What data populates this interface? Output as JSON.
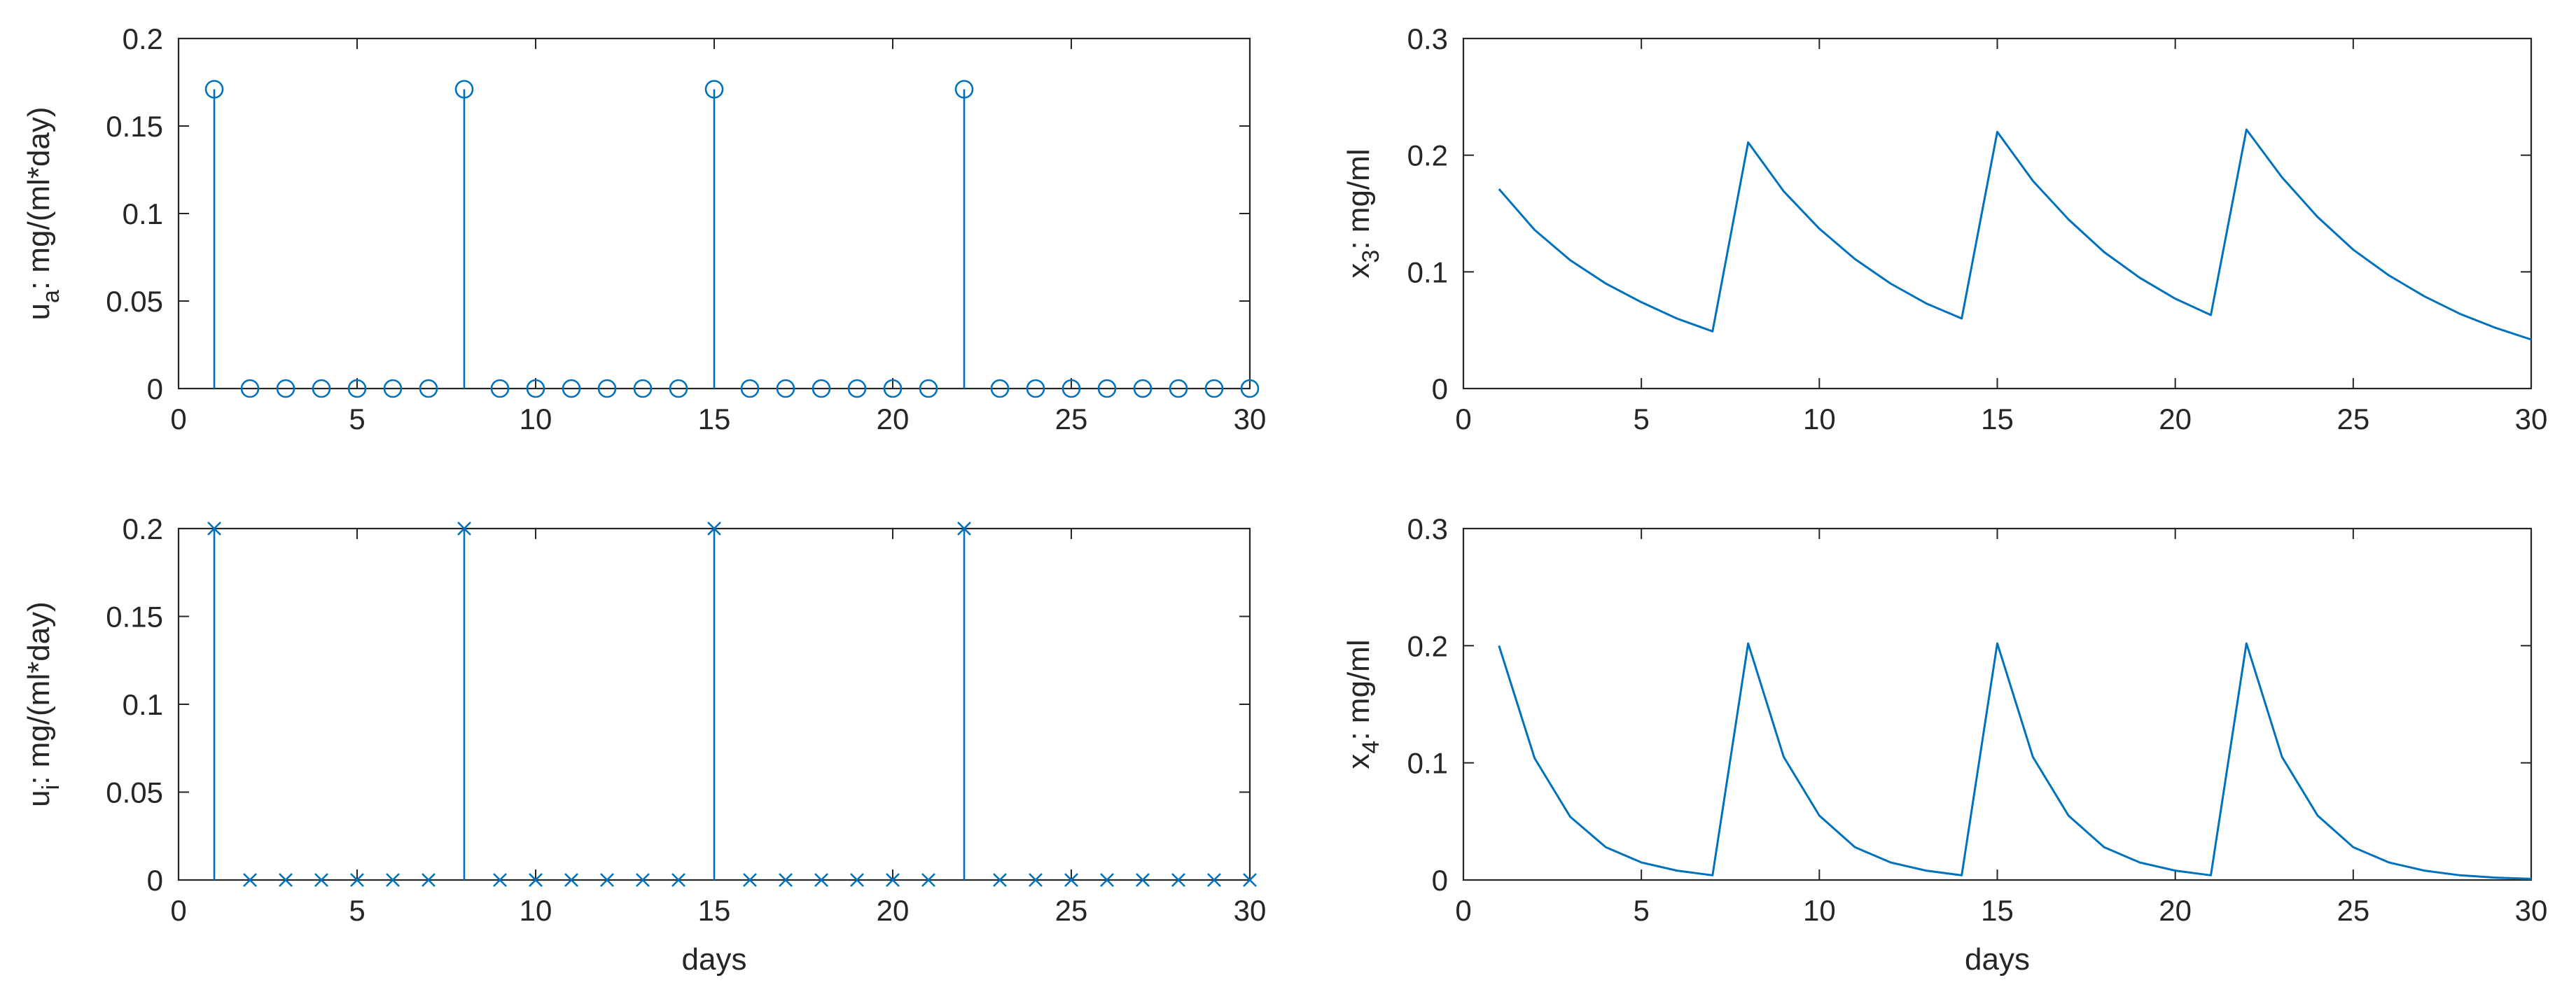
{
  "chart_data": [
    {
      "id": "ua",
      "type": "stem",
      "marker": "circle",
      "xlabel": "",
      "ylabel": {
        "base": "u",
        "sub": "a",
        "rest": ": mg/(ml*day)"
      },
      "xlim": [
        0,
        30
      ],
      "ylim": [
        0,
        0.2
      ],
      "xticks": [
        "0",
        "5",
        "10",
        "15",
        "20",
        "25",
        "30"
      ],
      "xtick_values": [
        0,
        5,
        10,
        15,
        20,
        25,
        30
      ],
      "yticks": [
        "0",
        "0.05",
        "0.1",
        "0.15",
        "0.2"
      ],
      "ytick_values": [
        0,
        0.05,
        0.1,
        0.15,
        0.2
      ],
      "series": [
        {
          "color": "#0072BD",
          "x": [
            1,
            2,
            3,
            4,
            5,
            6,
            7,
            8,
            9,
            10,
            11,
            12,
            13,
            14,
            15,
            16,
            17,
            18,
            19,
            20,
            21,
            22,
            23,
            24,
            25,
            26,
            27,
            28,
            29,
            30
          ],
          "y": [
            0.171,
            0,
            0,
            0,
            0,
            0,
            0,
            0.171,
            0,
            0,
            0,
            0,
            0,
            0,
            0.171,
            0,
            0,
            0,
            0,
            0,
            0,
            0.171,
            0,
            0,
            0,
            0,
            0,
            0,
            0,
            0
          ]
        }
      ]
    },
    {
      "id": "x3",
      "type": "line",
      "xlabel": "",
      "ylabel": {
        "base": "x",
        "sub": "3",
        "rest": ": mg/ml"
      },
      "xlim": [
        0,
        30
      ],
      "ylim": [
        0,
        0.3
      ],
      "xticks": [
        "0",
        "5",
        "10",
        "15",
        "20",
        "25",
        "30"
      ],
      "xtick_values": [
        0,
        5,
        10,
        15,
        20,
        25,
        30
      ],
      "yticks": [
        "0",
        "0.1",
        "0.2",
        "0.3"
      ],
      "ytick_values": [
        0,
        0.1,
        0.2,
        0.3
      ],
      "series": [
        {
          "color": "#0072BD",
          "x": [
            1,
            2,
            3,
            4,
            5,
            6,
            7,
            8,
            9,
            10,
            11,
            12,
            13,
            14,
            15,
            16,
            17,
            18,
            19,
            20,
            21,
            22,
            23,
            24,
            25,
            26,
            27,
            28,
            29,
            30
          ],
          "y": [
            0.171,
            0.136,
            0.11,
            0.09,
            0.074,
            0.06,
            0.049,
            0.211,
            0.169,
            0.137,
            0.111,
            0.09,
            0.073,
            0.06,
            0.22,
            0.178,
            0.145,
            0.117,
            0.095,
            0.077,
            0.063,
            0.222,
            0.181,
            0.147,
            0.119,
            0.097,
            0.079,
            0.064,
            0.052,
            0.042
          ]
        }
      ]
    },
    {
      "id": "ui",
      "type": "stem",
      "marker": "x",
      "xlabel": "days",
      "ylabel": {
        "base": "u",
        "sub": "i",
        "rest": ": mg/(ml*day)"
      },
      "xlim": [
        0,
        30
      ],
      "ylim": [
        0,
        0.2
      ],
      "xticks": [
        "0",
        "5",
        "10",
        "15",
        "20",
        "25",
        "30"
      ],
      "xtick_values": [
        0,
        5,
        10,
        15,
        20,
        25,
        30
      ],
      "yticks": [
        "0",
        "0.05",
        "0.1",
        "0.15",
        "0.2"
      ],
      "ytick_values": [
        0,
        0.05,
        0.1,
        0.15,
        0.2
      ],
      "series": [
        {
          "color": "#0072BD",
          "x": [
            1,
            2,
            3,
            4,
            5,
            6,
            7,
            8,
            9,
            10,
            11,
            12,
            13,
            14,
            15,
            16,
            17,
            18,
            19,
            20,
            21,
            22,
            23,
            24,
            25,
            26,
            27,
            28,
            29,
            30
          ],
          "y": [
            0.2,
            0,
            0,
            0,
            0,
            0,
            0,
            0.2,
            0,
            0,
            0,
            0,
            0,
            0,
            0.2,
            0,
            0,
            0,
            0,
            0,
            0,
            0.2,
            0,
            0,
            0,
            0,
            0,
            0,
            0,
            0
          ]
        }
      ]
    },
    {
      "id": "x4",
      "type": "line",
      "xlabel": "days",
      "ylabel": {
        "base": "x",
        "sub": "4",
        "rest": ": mg/ml"
      },
      "xlim": [
        0,
        30
      ],
      "ylim": [
        0,
        0.3
      ],
      "xticks": [
        "0",
        "5",
        "10",
        "15",
        "20",
        "25",
        "30"
      ],
      "xtick_values": [
        0,
        5,
        10,
        15,
        20,
        25,
        30
      ],
      "yticks": [
        "0",
        "0.1",
        "0.2",
        "0.3"
      ],
      "ytick_values": [
        0,
        0.1,
        0.2,
        0.3
      ],
      "series": [
        {
          "color": "#0072BD",
          "x": [
            1,
            2,
            3,
            4,
            5,
            6,
            7,
            8,
            9,
            10,
            11,
            12,
            13,
            14,
            15,
            16,
            17,
            18,
            19,
            20,
            21,
            22,
            23,
            24,
            25,
            26,
            27,
            28,
            29,
            30
          ],
          "y": [
            0.2,
            0.104,
            0.054,
            0.028,
            0.015,
            0.008,
            0.004,
            0.202,
            0.105,
            0.055,
            0.028,
            0.015,
            0.008,
            0.004,
            0.202,
            0.105,
            0.055,
            0.028,
            0.015,
            0.008,
            0.004,
            0.202,
            0.105,
            0.055,
            0.028,
            0.015,
            0.008,
            0.004,
            0.002,
            0.001
          ]
        }
      ]
    }
  ]
}
